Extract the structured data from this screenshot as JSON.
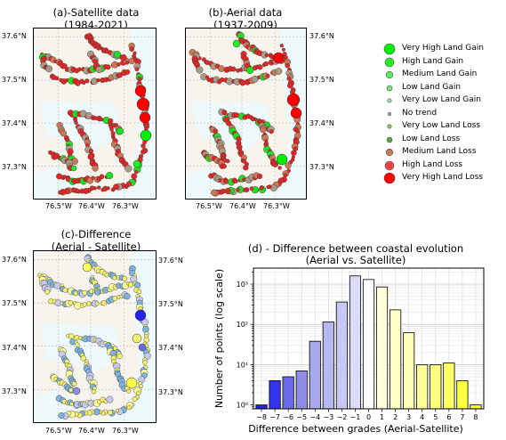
{
  "maps": {
    "a": {
      "title_line1": "(a)-Satellite data",
      "title_line2": "(1984-2021)"
    },
    "b": {
      "title_line1": "(b)-Aerial data",
      "title_line2": "(1937-2009)"
    },
    "c": {
      "title_line1": "(c)-Difference",
      "title_line2": "(Aerial - Satellite)"
    }
  },
  "map_ticks": {
    "lon": [
      "76.5°W",
      "76.4°W",
      "76.3°W"
    ],
    "lat": [
      "37.6°N",
      "37.5°N",
      "37.4°N",
      "37.3°N"
    ]
  },
  "legend": [
    {
      "label": "Very High Land Gain",
      "color": "#00ee00"
    },
    {
      "label": "High Land Gain",
      "color": "#22ee22"
    },
    {
      "label": "Medium Land Gain",
      "color": "#55ee55"
    },
    {
      "label": "Low Land Gain",
      "color": "#77e877"
    },
    {
      "label": "Very Low Land Gain",
      "color": "#99e099"
    },
    {
      "label": "No trend",
      "color": "#a89a86"
    },
    {
      "label": "Very Low Land Loss",
      "color": "#88cc44"
    },
    {
      "label": "Low Land Loss",
      "color": "#55aa33"
    },
    {
      "label": "Medium Land Loss",
      "color": "#cc7755"
    },
    {
      "label": "High Land Loss",
      "color": "#ee4444"
    },
    {
      "label": "Very High Land Loss",
      "color": "#ff0000"
    }
  ],
  "chart_data": {
    "type": "bar",
    "title": "(d) - Difference between coastal evolution",
    "subtitle": "(Aerial vs. Satellite)",
    "xlabel": "Difference between grades (Aerial-Satellite)",
    "ylabel": "Number of points (log scale)",
    "yscale": "log",
    "ylim": [
      0.8,
      2500
    ],
    "y_ticks": [
      {
        "value": 1,
        "label": "10⁰"
      },
      {
        "value": 10,
        "label": "10¹"
      },
      {
        "value": 100,
        "label": "10²"
      },
      {
        "value": 1000,
        "label": "10³"
      }
    ],
    "x": [
      -8,
      -7,
      -6,
      -5,
      -4,
      -3,
      -2,
      -1,
      0,
      1,
      2,
      3,
      4,
      5,
      6,
      7,
      8
    ],
    "values": [
      1,
      4,
      5,
      7,
      38,
      115,
      360,
      1600,
      1300,
      850,
      230,
      62,
      10,
      10,
      11,
      4,
      1
    ],
    "colors": [
      "#2424ee",
      "#3434ee",
      "#6a6ae8",
      "#8e8ee8",
      "#a8a8ee",
      "#b8b8f0",
      "#c8c8f4",
      "#dcdcf8",
      "#ffffff",
      "#ffffdc",
      "#ffffc8",
      "#ffffb8",
      "#ffff99",
      "#ffff80",
      "#ffff66",
      "#ffff44",
      "#ffff22"
    ],
    "grid": true
  },
  "colors": {
    "land": "#f6f4ec",
    "water": "#eef9fb",
    "loss": "#e02828",
    "gain": "#22dd22",
    "diff_light": "#f4f070",
    "diff_blue": "#7fb2dc"
  }
}
